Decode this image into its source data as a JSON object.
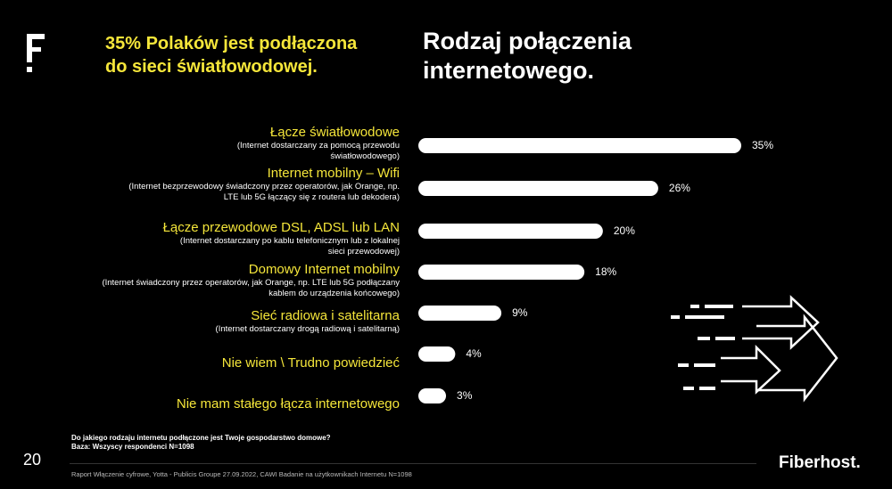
{
  "logo_letter": "F",
  "headline": "35% Polaków jest podłączona do sieci światłowodowej.",
  "title": "Rodzaj połączenia internetowego.",
  "chart_data": {
    "type": "bar",
    "orientation": "horizontal",
    "title": "Rodzaj połączenia internetowego.",
    "unit": "%",
    "xlim": [
      0,
      35
    ],
    "categories": [
      {
        "label": "Łącze światłowodowe",
        "sub": "(Internet dostarczany za pomocą przewodu światłowodowego)"
      },
      {
        "label": "Internet mobilny – Wifi",
        "sub": "(Internet bezprzewodowy świadczony przez operatorów, jak Orange, np. LTE lub 5G łączący się z routera lub dekodera)"
      },
      {
        "label": "Łącze przewodowe DSL, ADSL lub LAN",
        "sub": "(Internet dostarczany po kablu telefonicznym lub z lokalnej sieci przewodowej)"
      },
      {
        "label": "Domowy Internet mobilny",
        "sub": "(Internet świadczony przez operatorów, jak Orange, np. LTE lub 5G podłączany kablem do urządzenia końcowego)"
      },
      {
        "label": "Sieć radiowa i satelitarna",
        "sub": "(Internet dostarczany drogą radiową i satelitarną)"
      },
      {
        "label": "Nie wiem \\ Trudno powiedzieć",
        "sub": ""
      },
      {
        "label": "Nie mam stałego łącza internetowego",
        "sub": ""
      }
    ],
    "values": [
      35,
      26,
      20,
      18,
      9,
      4,
      3
    ],
    "value_labels": [
      "35%",
      "26%",
      "20%",
      "18%",
      "9%",
      "4%",
      "3%"
    ],
    "bar_color": "#ffffff",
    "label_color": "#f5e63a"
  },
  "footnote": {
    "question": "Do jakiego rodzaju internetu  podłączone  jest Twoje  gospodarstwo  domowe?",
    "base": "Baza: Wszyscy respondenci  N=1098"
  },
  "source": "Raport Włączenie cyfrowe, Yotta - Publicis Groupe 27.09.2022, CAWI Badanie na użytkownikach Internetu N=1098",
  "page_number": "20",
  "brand": "Fiberhost."
}
